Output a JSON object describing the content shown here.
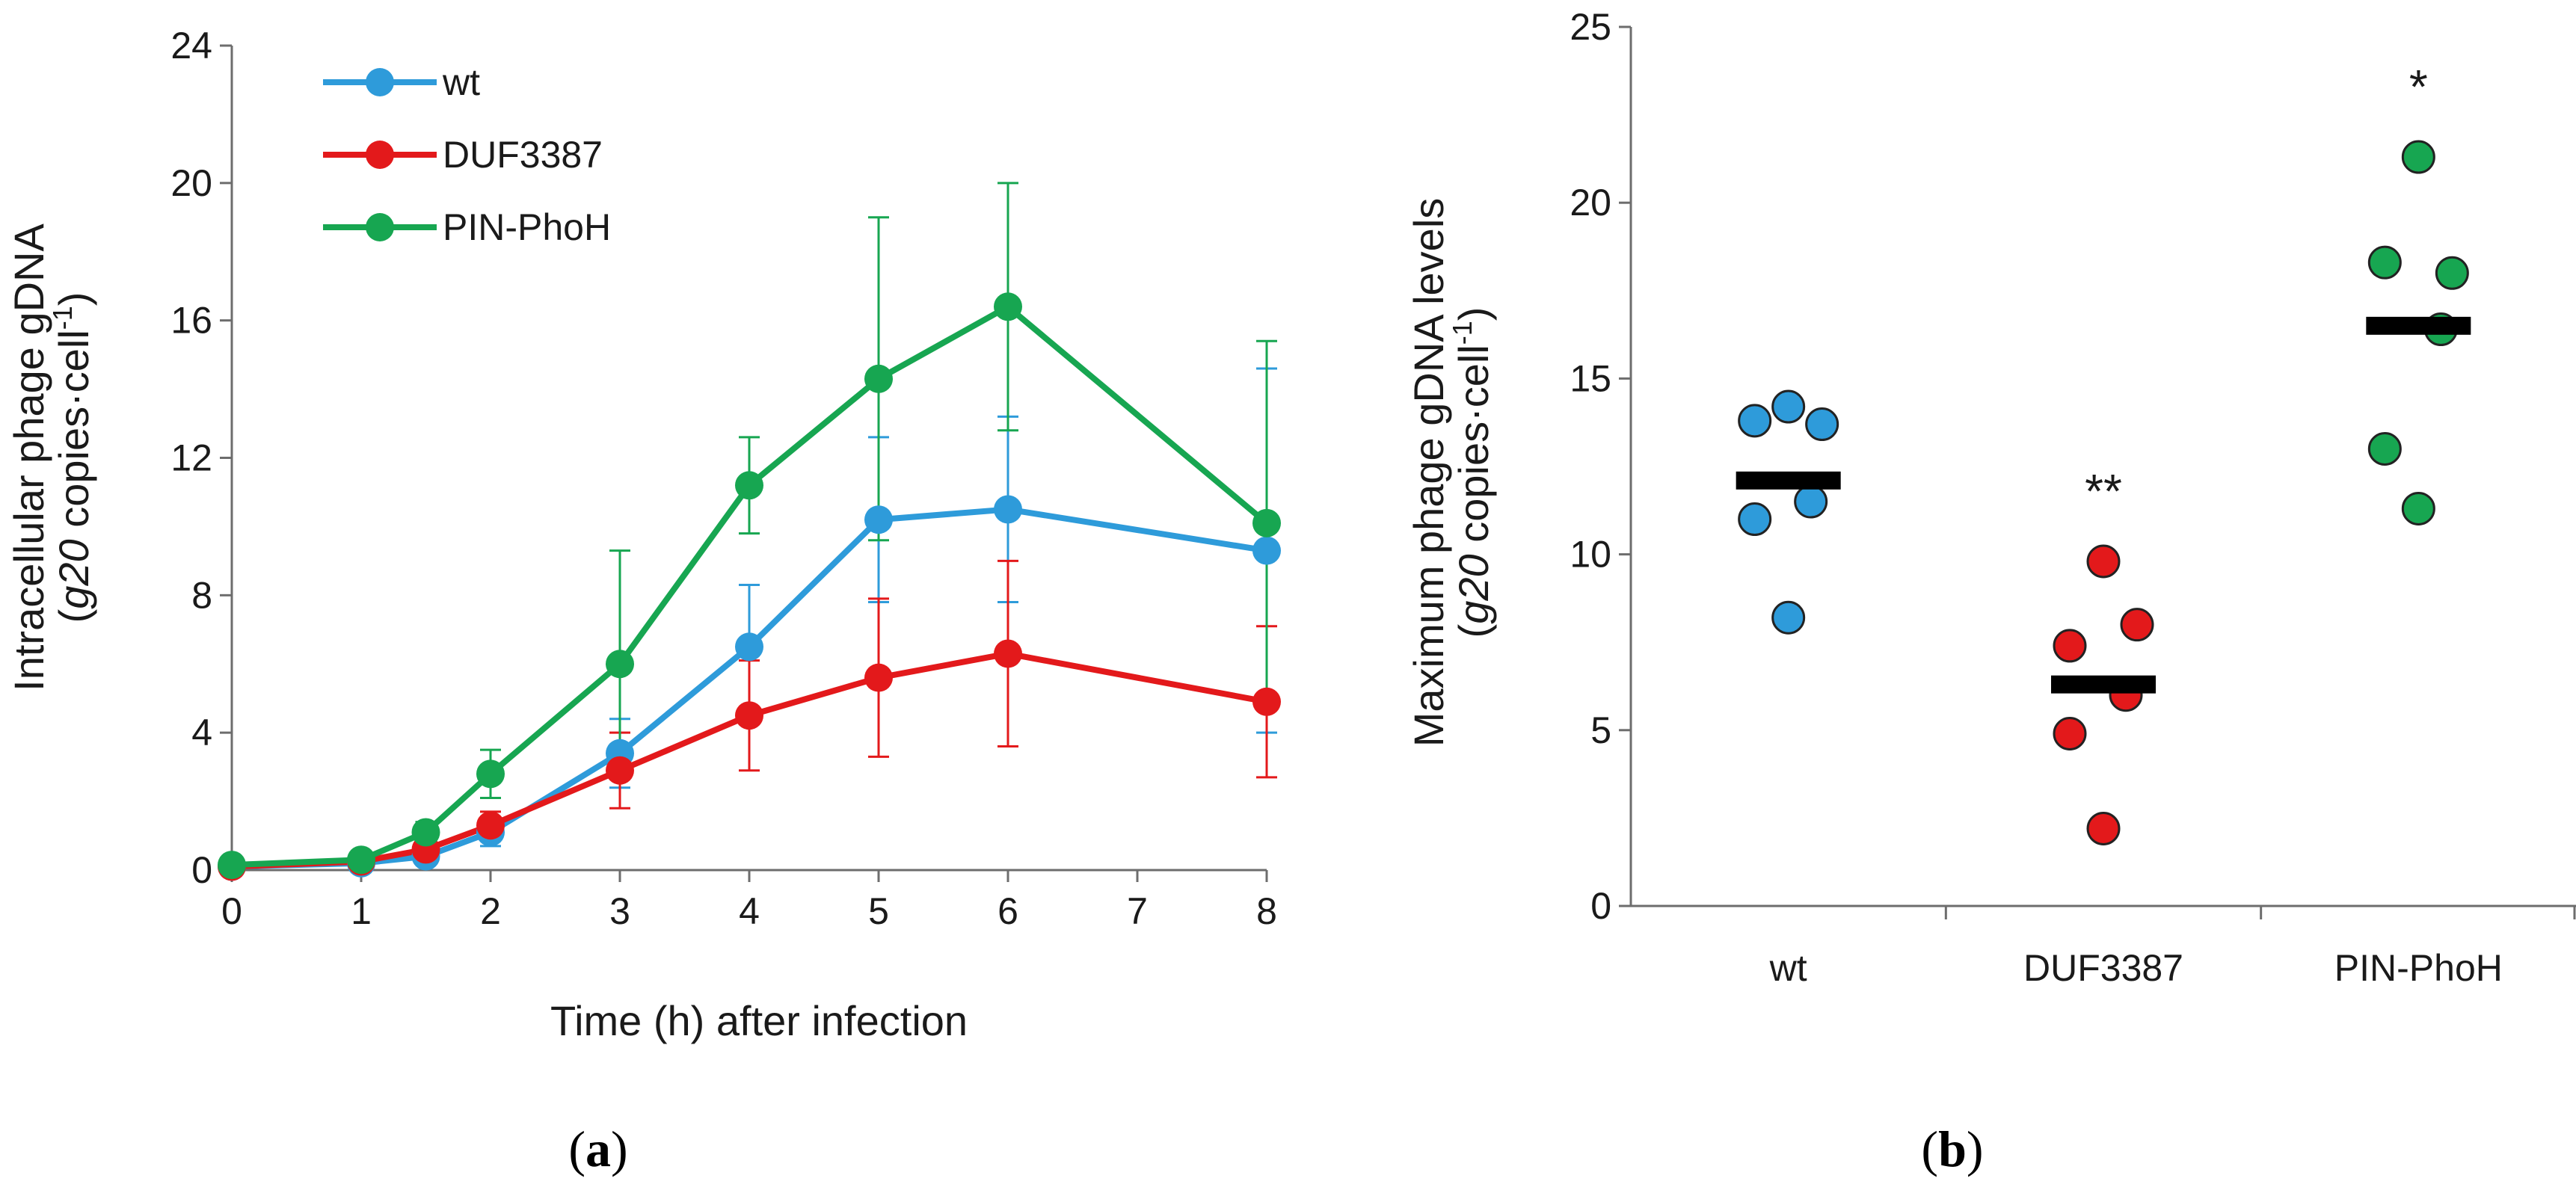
{
  "chart_data": [
    {
      "type": "line",
      "panel_label": "(a)",
      "xlabel": "Time (h) after infection",
      "ylabel_line1": "Intracellular phage gDNA",
      "ylabel_line2_parts": [
        "(",
        "g20",
        " copies·cell",
        "-1",
        ")"
      ],
      "x": [
        0,
        1,
        1.5,
        2,
        3,
        4,
        5,
        6,
        8
      ],
      "x_ticks": [
        0,
        1,
        2,
        3,
        4,
        5,
        6,
        7,
        8
      ],
      "xlim": [
        0,
        8
      ],
      "y_ticks": [
        0,
        4,
        8,
        12,
        16,
        20,
        24
      ],
      "ylim": [
        0,
        24
      ],
      "series": [
        {
          "name": "wt",
          "color": "#2E9BDA",
          "values": [
            0.1,
            0.2,
            0.4,
            1.1,
            3.4,
            6.5,
            10.2,
            10.5,
            9.3
          ],
          "errors": [
            0.05,
            0.1,
            0.2,
            0.4,
            1.0,
            1.8,
            2.4,
            2.7,
            5.3
          ]
        },
        {
          "name": "DUF3387",
          "color": "#E3191B",
          "values": [
            0.1,
            0.25,
            0.6,
            1.3,
            2.9,
            4.5,
            5.6,
            6.3,
            4.9
          ],
          "errors": [
            0.05,
            0.1,
            0.25,
            0.4,
            1.1,
            1.6,
            2.3,
            2.7,
            2.2
          ]
        },
        {
          "name": "PIN-PhoH",
          "color": "#17A651",
          "values": [
            0.15,
            0.3,
            1.1,
            2.8,
            6.0,
            11.2,
            14.3,
            16.4,
            10.1
          ],
          "errors": [
            0.05,
            0.1,
            0.3,
            0.7,
            3.3,
            1.4,
            4.7,
            3.6,
            5.3
          ]
        }
      ]
    },
    {
      "type": "scatter",
      "panel_label": "(b)",
      "ylabel_line1": "Maximum phage gDNA levels",
      "ylabel_line2_parts": [
        "(",
        "g20",
        " copies·cell",
        "-1",
        ")"
      ],
      "categories": [
        "wt",
        "DUF3387",
        "PIN-PhoH"
      ],
      "y_ticks": [
        0,
        5,
        10,
        15,
        20,
        25
      ],
      "ylim": [
        0,
        25
      ],
      "groups": [
        {
          "name": "wt",
          "color": "#2E9BDA",
          "points": [
            14.2,
            13.7,
            13.8,
            11.5,
            11.0,
            8.2
          ],
          "mean": 12.1,
          "significance": ""
        },
        {
          "name": "DUF3387",
          "color": "#E3191B",
          "points": [
            9.8,
            8.0,
            7.4,
            6.0,
            4.9,
            2.2
          ],
          "mean": 6.3,
          "significance": "**"
        },
        {
          "name": "PIN-PhoH",
          "color": "#17A651",
          "points": [
            21.3,
            18.0,
            18.3,
            16.4,
            13.0,
            11.3
          ],
          "mean": 16.5,
          "significance": "*"
        }
      ]
    }
  ]
}
